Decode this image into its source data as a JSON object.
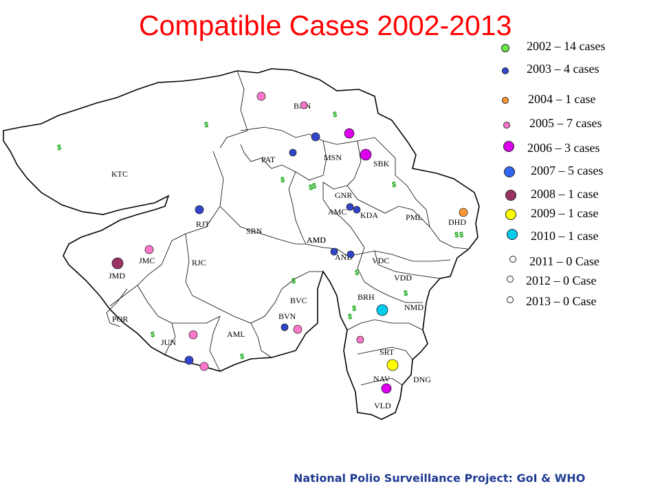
{
  "title": "Compatible Cases 2002-2013",
  "footer": "National Polio Surveillance Project: GoI & WHO",
  "legend": [
    {
      "label": "2002 – 14 cases",
      "color": "#66ee44"
    },
    {
      "label": "2003 –  4 cases",
      "color": "#3344cc"
    },
    {
      "label": "2004 –  1 case",
      "color": "#ff9933"
    },
    {
      "label": "2005 –  7 cases",
      "color": "#ff77cc"
    },
    {
      "label": "2006 –  3 cases",
      "color": "#dd00ee"
    },
    {
      "label": "2007 – 5 cases",
      "color": "#3366ee"
    },
    {
      "label": "2008 – 1 case",
      "color": "#993366"
    },
    {
      "label": "2009 – 1 case",
      "color": "#ffff00"
    },
    {
      "label": "2010 – 1 case",
      "color": "#00ccee"
    },
    {
      "label": "2011 – 0 Case",
      "color": "#ffffff"
    },
    {
      "label": "2012 – 0 Case",
      "color": "#ffffff"
    },
    {
      "label": "2013 – 0 Case",
      "color": "#ffffff"
    }
  ],
  "districts": [
    "BAN",
    "PAT",
    "MSN",
    "SBK",
    "KTC",
    "GNR",
    "AMD",
    "KDA",
    "PML",
    "DHD",
    "RJT",
    "SRN",
    "AMD",
    "AND",
    "VDC",
    "JMC",
    "RJC",
    "JMD",
    "VDD",
    "BRH",
    "NMD",
    "BVC",
    "BVN",
    "POR",
    "AML",
    "JUN",
    "SRT",
    "NAV",
    "DNG",
    "VLD",
    "AMC"
  ],
  "district_label_marker": "$"
}
